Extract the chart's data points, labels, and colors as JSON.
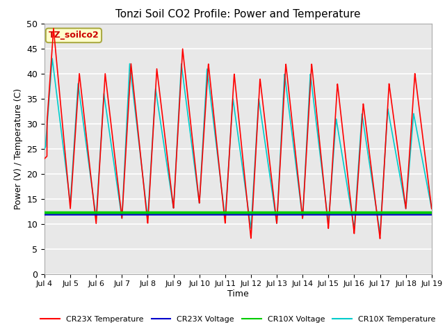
{
  "title": "Tonzi Soil CO2 Profile: Power and Temperature",
  "ylabel": "Power (V) / Temperature (C)",
  "xlabel": "Time",
  "ylim": [
    0,
    50
  ],
  "yticks": [
    0,
    5,
    10,
    15,
    20,
    25,
    30,
    35,
    40,
    45,
    50
  ],
  "xtick_labels": [
    "Jul 4",
    "Jul 5",
    "Jul 6",
    "Jul 7",
    "Jul 8",
    "Jul 9",
    "Jul 10",
    "Jul 11",
    "Jul 12",
    "Jul 13",
    "Jul 14",
    "Jul 15",
    "Jul 16",
    "Jul 17",
    "Jul 18",
    "Jul 19"
  ],
  "cr23x_temp_color": "#ff0000",
  "cr23x_volt_color": "#0000cc",
  "cr10x_volt_color": "#00cc00",
  "cr10x_temp_color": "#00cccc",
  "cr23x_volt_value": 11.8,
  "cr10x_volt_value": 12.2,
  "bg_color": "#e8e8e8",
  "grid_color": "#ffffff",
  "annotation_text": "TZ_soilco2",
  "annotation_bg": "#ffffcc",
  "annotation_border": "#aaaa44",
  "annotation_text_color": "#cc0000",
  "legend_entries": [
    "CR23X Temperature",
    "CR23X Voltage",
    "CR10X Voltage",
    "CR10X Temperature"
  ],
  "n_days": 15,
  "samples_per_day": 200
}
